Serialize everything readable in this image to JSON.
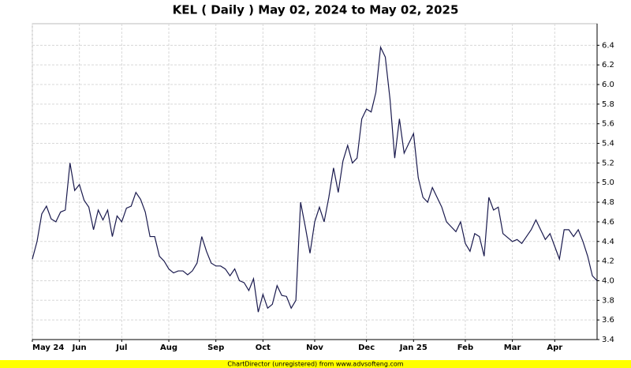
{
  "chart_data": {
    "type": "line",
    "title": "KEL ( Daily ) May 02, 2024 to May 02, 2025",
    "footer": "ChartDirector (unregistered) from www.advsofteng.com",
    "categories": [
      "May 24",
      null,
      null,
      null,
      null,
      null,
      null,
      null,
      null,
      null,
      "Jun",
      null,
      null,
      null,
      null,
      null,
      null,
      null,
      null,
      "Jul",
      null,
      null,
      null,
      null,
      null,
      null,
      null,
      null,
      null,
      "Aug",
      null,
      null,
      null,
      null,
      null,
      null,
      null,
      null,
      null,
      "Sep",
      null,
      null,
      null,
      null,
      null,
      null,
      null,
      null,
      null,
      "Oct",
      null,
      null,
      null,
      null,
      null,
      null,
      null,
      null,
      null,
      null,
      "Nov",
      null,
      null,
      null,
      null,
      null,
      null,
      null,
      null,
      null,
      null,
      "Dec",
      null,
      null,
      null,
      null,
      null,
      null,
      null,
      null,
      null,
      "Jan 25",
      null,
      null,
      null,
      null,
      null,
      null,
      null,
      null,
      null,
      null,
      "Feb",
      null,
      null,
      null,
      null,
      null,
      null,
      null,
      null,
      null,
      "Mar",
      null,
      null,
      null,
      null,
      null,
      null,
      null,
      null,
      "Apr",
      null,
      null,
      null,
      null,
      null,
      null,
      null,
      null,
      null
    ],
    "values": [
      4.22,
      4.4,
      4.68,
      4.76,
      4.63,
      4.6,
      4.7,
      4.72,
      5.2,
      4.92,
      4.98,
      4.82,
      4.75,
      4.52,
      4.72,
      4.62,
      4.72,
      4.45,
      4.66,
      4.6,
      4.74,
      4.76,
      4.9,
      4.83,
      4.7,
      4.45,
      4.45,
      4.25,
      4.2,
      4.12,
      4.08,
      4.1,
      4.1,
      4.06,
      4.1,
      4.18,
      4.45,
      4.3,
      4.18,
      4.15,
      4.15,
      4.12,
      4.05,
      4.12,
      4.0,
      3.98,
      3.9,
      4.02,
      3.68,
      3.86,
      3.72,
      3.76,
      3.95,
      3.85,
      3.84,
      3.72,
      3.8,
      4.8,
      4.55,
      4.28,
      4.6,
      4.75,
      4.6,
      4.85,
      5.15,
      4.9,
      5.22,
      5.38,
      5.2,
      5.25,
      5.65,
      5.75,
      5.72,
      5.92,
      6.38,
      6.28,
      5.85,
      5.25,
      5.65,
      5.3,
      5.4,
      5.5,
      5.05,
      4.85,
      4.8,
      4.95,
      4.85,
      4.75,
      4.6,
      4.55,
      4.5,
      4.6,
      4.38,
      4.3,
      4.48,
      4.45,
      4.25,
      4.85,
      4.72,
      4.75,
      4.48,
      4.44,
      4.4,
      4.42,
      4.38,
      4.45,
      4.52,
      4.62,
      4.52,
      4.42,
      4.48,
      4.35,
      4.22,
      4.52,
      4.52,
      4.45,
      4.52,
      4.4,
      4.25,
      4.05,
      4.0
    ],
    "color": "#1a1a4e",
    "ylim": [
      3.4,
      6.62
    ],
    "yticks": [
      3.4,
      3.6,
      3.8,
      {
        "value": 4,
        "label": "4.0"
      },
      4.2,
      4.4,
      4.6,
      4.8,
      {
        "value": 5,
        "label": "5.0"
      },
      5.2,
      5.4,
      5.6,
      5.8,
      {
        "value": 6,
        "label": "6.0"
      },
      6.2,
      6.4
    ],
    "grid": true
  }
}
